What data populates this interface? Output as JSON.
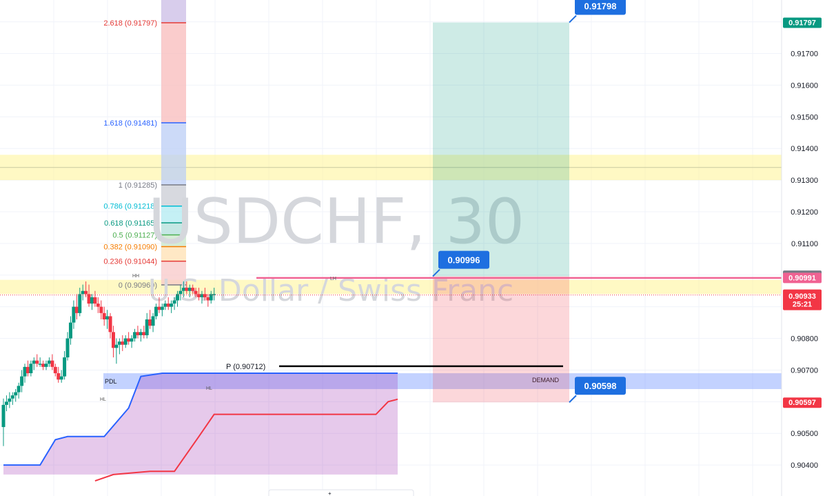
{
  "watermark": {
    "symbol": "USDCHF, 30",
    "name": "U.S. Dollar / Swiss Franc"
  },
  "chart_data": {
    "type": "candlestick",
    "symbol": "USDCHF",
    "timeframe": "30",
    "ylim": [
      0.9037,
      0.9185
    ],
    "y_ticks": [
      "0.91700",
      "0.91600",
      "0.91500",
      "0.91400",
      "0.91300",
      "0.91200",
      "0.91100",
      "0.90800",
      "0.90700",
      "0.90500",
      "0.90400"
    ],
    "candles": [
      [
        0.9052,
        0.9061,
        0.9046,
        0.9059
      ],
      [
        0.9059,
        0.9062,
        0.9057,
        0.906
      ],
      [
        0.906,
        0.9063,
        0.9058,
        0.9061
      ],
      [
        0.9061,
        0.9063,
        0.9059,
        0.9062
      ],
      [
        0.9062,
        0.9064,
        0.906,
        0.9063
      ],
      [
        0.9063,
        0.9066,
        0.9061,
        0.9065
      ],
      [
        0.9065,
        0.907,
        0.9063,
        0.9068
      ],
      [
        0.9068,
        0.9072,
        0.9066,
        0.9071
      ],
      [
        0.9071,
        0.9073,
        0.9068,
        0.9069
      ],
      [
        0.9069,
        0.9073,
        0.9068,
        0.9072
      ],
      [
        0.9072,
        0.9074,
        0.907,
        0.9073
      ],
      [
        0.9073,
        0.9075,
        0.9071,
        0.9072
      ],
      [
        0.9072,
        0.9074,
        0.9071,
        0.9072
      ],
      [
        0.9072,
        0.9073,
        0.907,
        0.9071
      ],
      [
        0.9071,
        0.9073,
        0.907,
        0.9072
      ],
      [
        0.9072,
        0.9074,
        0.9071,
        0.9073
      ],
      [
        0.9073,
        0.9075,
        0.907,
        0.9071
      ],
      [
        0.9071,
        0.9072,
        0.9068,
        0.9069
      ],
      [
        0.9069,
        0.9071,
        0.9066,
        0.9067
      ],
      [
        0.9067,
        0.907,
        0.9066,
        0.9068
      ],
      [
        0.9068,
        0.9076,
        0.9067,
        0.9074
      ],
      [
        0.9074,
        0.9082,
        0.9073,
        0.908
      ],
      [
        0.908,
        0.9087,
        0.9078,
        0.9085
      ],
      [
        0.9085,
        0.9092,
        0.9083,
        0.909
      ],
      [
        0.909,
        0.9094,
        0.9086,
        0.9088
      ],
      [
        0.9088,
        0.9096,
        0.9087,
        0.9094
      ],
      [
        0.9094,
        0.9097,
        0.9092,
        0.9095
      ],
      [
        0.9095,
        0.9098,
        0.9093,
        0.9094
      ],
      [
        0.9094,
        0.9097,
        0.909,
        0.9091
      ],
      [
        0.9091,
        0.9094,
        0.9089,
        0.9093
      ],
      [
        0.9093,
        0.9095,
        0.909,
        0.9091
      ],
      [
        0.9091,
        0.9093,
        0.9088,
        0.909
      ],
      [
        0.909,
        0.9092,
        0.9086,
        0.9088
      ],
      [
        0.9088,
        0.909,
        0.9084,
        0.9086
      ],
      [
        0.9086,
        0.9089,
        0.9083,
        0.9087
      ],
      [
        0.9087,
        0.9088,
        0.908,
        0.9082
      ],
      [
        0.9082,
        0.9084,
        0.9074,
        0.9077
      ],
      [
        0.9077,
        0.908,
        0.9072,
        0.9078
      ],
      [
        0.9078,
        0.908,
        0.9075,
        0.9079
      ],
      [
        0.9079,
        0.9081,
        0.9076,
        0.9078
      ],
      [
        0.9078,
        0.9081,
        0.9077,
        0.908
      ],
      [
        0.908,
        0.9082,
        0.9078,
        0.9079
      ],
      [
        0.9079,
        0.9081,
        0.9077,
        0.908
      ],
      [
        0.908,
        0.9083,
        0.9079,
        0.9082
      ],
      [
        0.9082,
        0.9084,
        0.908,
        0.9081
      ],
      [
        0.9081,
        0.9083,
        0.9079,
        0.9082
      ],
      [
        0.9082,
        0.9084,
        0.908,
        0.9081
      ],
      [
        0.9081,
        0.9088,
        0.908,
        0.9086
      ],
      [
        0.9086,
        0.9089,
        0.9083,
        0.9084
      ],
      [
        0.9084,
        0.9088,
        0.9082,
        0.9087
      ],
      [
        0.9087,
        0.9091,
        0.9086,
        0.909
      ],
      [
        0.909,
        0.9093,
        0.9088,
        0.9089
      ],
      [
        0.9089,
        0.9091,
        0.9087,
        0.909
      ],
      [
        0.909,
        0.9092,
        0.9089,
        0.9091
      ],
      [
        0.9091,
        0.9093,
        0.9089,
        0.909
      ],
      [
        0.909,
        0.9092,
        0.9088,
        0.9091
      ],
      [
        0.9091,
        0.9093,
        0.9089,
        0.9092
      ],
      [
        0.9092,
        0.9095,
        0.909,
        0.9094
      ],
      [
        0.9094,
        0.9097,
        0.9092,
        0.9095
      ],
      [
        0.9095,
        0.9098,
        0.9093,
        0.9096
      ],
      [
        0.9096,
        0.9098,
        0.9094,
        0.9095
      ],
      [
        0.9095,
        0.9097,
        0.9093,
        0.9096
      ],
      [
        0.9096,
        0.9097,
        0.9094,
        0.9095
      ],
      [
        0.9095,
        0.9096,
        0.9093,
        0.9094
      ],
      [
        0.9094,
        0.9096,
        0.9092,
        0.9093
      ],
      [
        0.9093,
        0.9095,
        0.9091,
        0.9094
      ],
      [
        0.9094,
        0.9096,
        0.9092,
        0.9093
      ],
      [
        0.9093,
        0.9094,
        0.909,
        0.9092
      ],
      [
        0.9092,
        0.9095,
        0.9091,
        0.9094
      ],
      [
        0.9094,
        0.9096,
        0.9092,
        0.9094
      ]
    ],
    "fib_levels": [
      {
        "label": "2.618 (0.91797)",
        "price": 0.91797,
        "color": "#e53935"
      },
      {
        "label": "1.618 (0.91481)",
        "price": 0.91481,
        "color": "#2962ff"
      },
      {
        "label": "1 (0.91285)",
        "price": 0.91285,
        "color": "#787b86"
      },
      {
        "label": "0.786 (0.91218)",
        "price": 0.91218,
        "color": "#00bcd4"
      },
      {
        "label": "0.618 (0.91165)",
        "price": 0.91165,
        "color": "#089981"
      },
      {
        "label": "0.5 (0.91127)",
        "price": 0.91127,
        "color": "#4caf50"
      },
      {
        "label": "0.382 (0.91090)",
        "price": 0.9109,
        "color": "#f57c00"
      },
      {
        "label": "0.236 (0.91044)",
        "price": 0.91044,
        "color": "#e53935"
      },
      {
        "label": "0 (0.90969)",
        "price": 0.90969,
        "color": "#787b86"
      }
    ],
    "zones": {
      "supply_upper": [
        0.913,
        0.9138
      ],
      "supply_lower": [
        0.9094,
        0.90985
      ],
      "demand": [
        0.9064,
        0.9069
      ],
      "demand_label": "DEMAND"
    },
    "position": {
      "entry": 0.90996,
      "target": 0.91798,
      "stop": 0.90598
    },
    "pivot": {
      "label": "P (0.90712)",
      "price": 0.90712
    },
    "structure_labels": [
      "HH",
      "HL",
      "LH",
      "HL"
    ],
    "pdl_label": "PDL",
    "resistance_line": 0.90991,
    "current_price_line": 0.90937,
    "indicator": {
      "upper": [
        [
          0,
          0.904
        ],
        [
          12,
          0.904
        ],
        [
          17,
          0.9048
        ],
        [
          21,
          0.9049
        ],
        [
          33,
          0.9049
        ],
        [
          41,
          0.9058
        ],
        [
          45,
          0.9068
        ],
        [
          52,
          0.9069
        ],
        [
          130,
          0.9069
        ]
      ],
      "lower": [
        [
          30,
          0.9035
        ],
        [
          36,
          0.9037
        ],
        [
          48,
          0.9038
        ],
        [
          56,
          0.9038
        ],
        [
          64,
          0.9049
        ],
        [
          69,
          0.9056
        ],
        [
          122,
          0.9056
        ],
        [
          126,
          0.906
        ],
        [
          130,
          0.9061
        ]
      ],
      "top": 0.9037,
      "upper_color": "#2962ff",
      "lower_color": "#f23645",
      "fill_color": "#9c27b0"
    },
    "callouts": [
      {
        "text": "0.91798",
        "price": 0.91798
      },
      {
        "text": "0.90996",
        "price": 0.90996
      },
      {
        "text": "0.90598",
        "price": 0.90598
      }
    ],
    "price_tags": [
      {
        "text": "0.91797",
        "price": 0.91797,
        "color": "#089981"
      },
      {
        "text": "0.90998",
        "price": 0.90998,
        "color": "#787b86"
      },
      {
        "text": "0.90991",
        "price": 0.90991,
        "color": "#f06292"
      },
      {
        "text": "0.90937",
        "price": 0.90937,
        "color": "#f23645",
        "sub": "25:21"
      },
      {
        "text": "0.90933",
        "price": 0.90933,
        "color": "#f23645"
      },
      {
        "text": "0.90597",
        "price": 0.90597,
        "color": "#f23645"
      }
    ]
  }
}
